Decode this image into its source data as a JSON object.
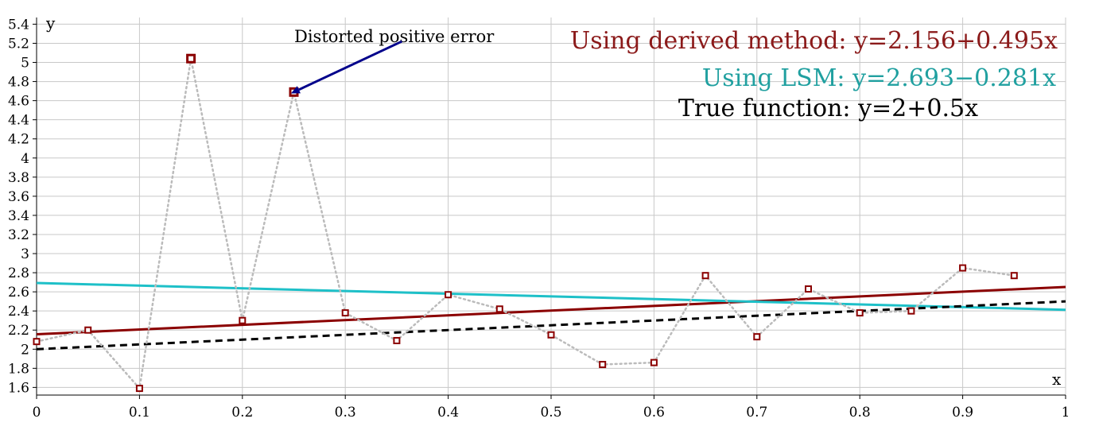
{
  "chart_data": {
    "type": "line",
    "xlabel": "x",
    "ylabel": "y",
    "xlim": [
      0,
      1
    ],
    "ylim": [
      1.52,
      5.47
    ],
    "grid": true,
    "x_ticks": [
      "0",
      "0.1",
      "0.2",
      "0.3",
      "0.4",
      "0.5",
      "0.6",
      "0.7",
      "0.8",
      "0.9",
      "1"
    ],
    "y_ticks": [
      "1.6",
      "1.8",
      "2",
      "2.2",
      "2.4",
      "2.6",
      "2.8",
      "3",
      "3.2",
      "3.4",
      "3.6",
      "3.8",
      "4",
      "4.2",
      "4.4",
      "4.6",
      "4.8",
      "5",
      "5.2",
      "5.4"
    ],
    "data_points": {
      "x": [
        0,
        0.05,
        0.1,
        0.15,
        0.2,
        0.25,
        0.3,
        0.35,
        0.4,
        0.45,
        0.5,
        0.55,
        0.6,
        0.65,
        0.7,
        0.75,
        0.8,
        0.85,
        0.9,
        0.95
      ],
      "y": [
        2.08,
        2.2,
        1.59,
        5.04,
        2.3,
        4.69,
        2.38,
        2.09,
        2.57,
        2.42,
        2.15,
        1.84,
        1.86,
        2.77,
        2.13,
        2.63,
        2.38,
        2.4,
        2.85,
        2.77
      ],
      "color": "#8b0000",
      "connector_color": "#bbbbbb"
    },
    "series": [
      {
        "intercept": 2.156,
        "slope": 0.495,
        "color": "#8b0000",
        "style": "solid"
      },
      {
        "intercept": 2.693,
        "slope": -0.281,
        "color": "#1ec0c8",
        "style": "solid"
      },
      {
        "intercept": 2.0,
        "slope": 0.5,
        "color": "#000000",
        "style": "dashed"
      }
    ],
    "annotations": {
      "outlier_note": {
        "text": "Distorted positive error",
        "arrow_from": [
          0.355,
          5.22
        ],
        "arrow_to": [
          0.25,
          4.69
        ],
        "arrow_color": "#00008b"
      },
      "equations": [
        {
          "label": "Using derived method: ",
          "formula": "y=2.156+0.495x",
          "label_color": "#8b1a1a",
          "formula_color": "#8b1a1a"
        },
        {
          "label": "Using LSM: ",
          "formula": "y=2.693−0.281x",
          "label_color": "#20a0a0",
          "formula_color": "#20a0a0"
        },
        {
          "label": "True function: ",
          "formula": "y=2+0.5x",
          "label_color": "#000000",
          "formula_color": "#000000"
        }
      ]
    }
  }
}
